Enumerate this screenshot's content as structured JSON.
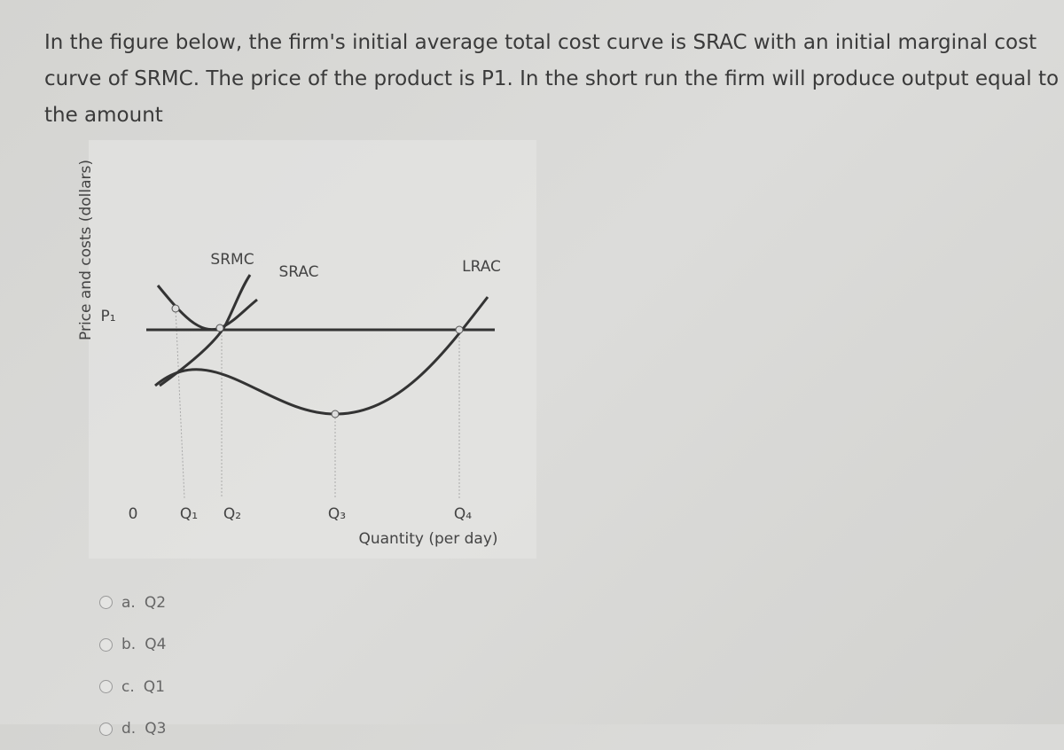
{
  "question": "In the figure below, the firm's initial average total cost curve is SRAC with an initial marginal cost curve of SRMC. The price of the product is P1. In the short run the firm will produce output equal to the amount",
  "figure": {
    "y_axis_label": "Price and costs (dollars)",
    "price_label": "P₁",
    "origin_label": "0",
    "x_labels": [
      "Q₁",
      "Q₂",
      "Q₃",
      "Q₄"
    ],
    "x_axis_label": "Quantity (per day)",
    "curve_labels": {
      "srmc": "SRMC",
      "srac": "SRAC",
      "lrac": "LRAC"
    }
  },
  "options": [
    {
      "letter": "a.",
      "text": "Q2"
    },
    {
      "letter": "b.",
      "text": "Q4"
    },
    {
      "letter": "c.",
      "text": "Q1"
    },
    {
      "letter": "d.",
      "text": "Q3"
    }
  ]
}
